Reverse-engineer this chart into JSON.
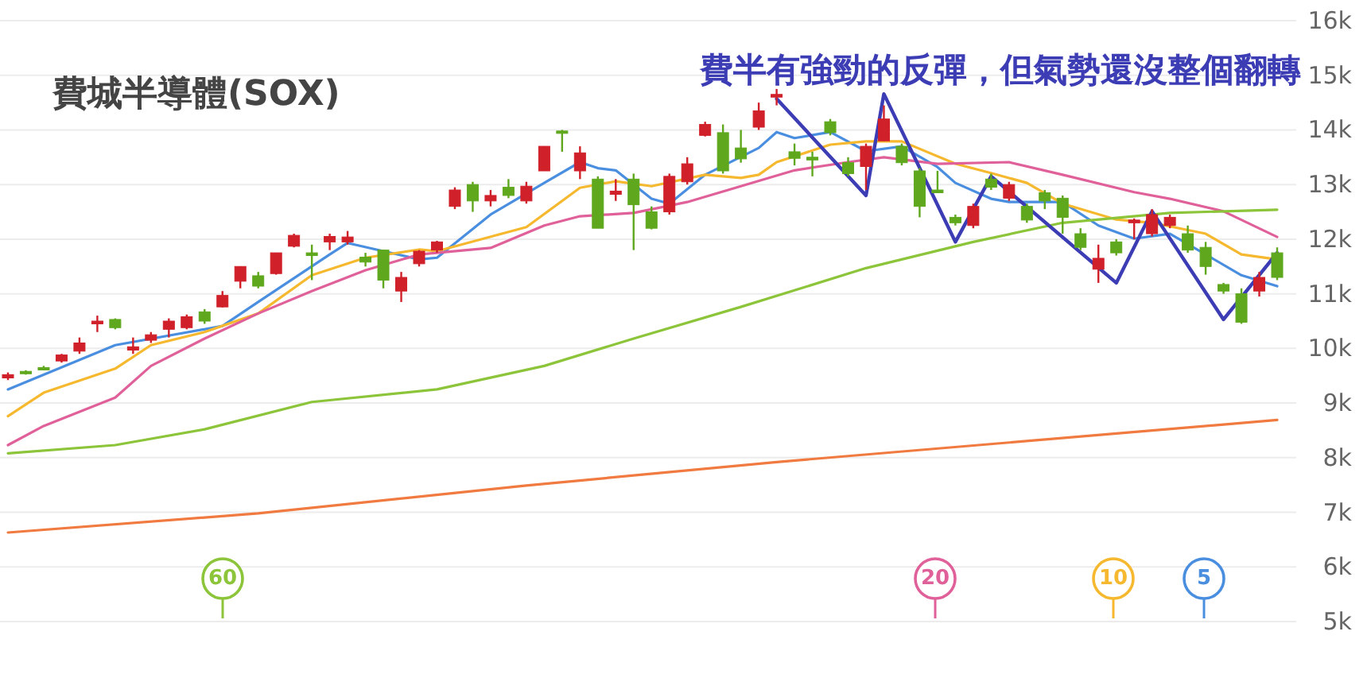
{
  "chart_data": {
    "type": "candlestick",
    "title": "費城半導體(SOX)",
    "annotations": [
      "費半有強勁的反彈，但氣勢還沒整個翻轉"
    ],
    "categories": [
      null,
      null,
      null,
      null,
      null,
      null,
      null,
      null,
      null,
      null,
      null,
      null,
      null,
      null,
      null,
      null,
      null,
      null,
      null,
      null,
      null,
      null,
      null,
      null,
      null,
      null,
      null,
      null,
      null,
      null,
      null,
      null,
      null,
      null,
      null,
      null,
      null,
      null,
      null,
      null,
      null,
      null,
      null,
      null,
      null,
      null,
      null,
      null,
      null,
      null,
      null,
      null,
      null,
      null,
      null,
      null,
      null,
      null,
      null,
      null,
      null,
      null,
      null,
      null,
      null,
      null,
      null,
      null,
      null,
      null,
      null,
      null
    ],
    "ohlc": [
      [
        9.46,
        9.56,
        9.42,
        9.52
      ],
      [
        9.58,
        9.6,
        9.52,
        9.56
      ],
      [
        9.65,
        9.68,
        9.6,
        9.62
      ],
      [
        9.77,
        9.9,
        9.74,
        9.88
      ],
      [
        9.95,
        10.2,
        9.9,
        10.1
      ],
      [
        10.45,
        10.6,
        10.3,
        10.5
      ],
      [
        10.53,
        10.55,
        10.35,
        10.38
      ],
      [
        9.97,
        10.2,
        9.9,
        10.03
      ],
      [
        10.15,
        10.3,
        10.1,
        10.25
      ],
      [
        10.35,
        10.55,
        10.2,
        10.5
      ],
      [
        10.38,
        10.62,
        10.35,
        10.58
      ],
      [
        10.67,
        10.72,
        10.45,
        10.5
      ],
      [
        10.76,
        11.05,
        10.75,
        10.97
      ],
      [
        11.23,
        11.5,
        11.1,
        11.5
      ],
      [
        11.33,
        11.4,
        11.1,
        11.14
      ],
      [
        11.37,
        11.75,
        11.35,
        11.75
      ],
      [
        11.87,
        12.1,
        11.85,
        12.07
      ],
      [
        11.75,
        11.9,
        11.25,
        11.7
      ],
      [
        11.95,
        12.1,
        11.8,
        12.05
      ],
      [
        11.95,
        12.15,
        11.9,
        12.04
      ],
      [
        11.67,
        11.75,
        11.5,
        11.58
      ],
      [
        11.8,
        11.8,
        11.1,
        11.25
      ],
      [
        11.05,
        11.4,
        10.85,
        11.3
      ],
      [
        11.55,
        11.8,
        11.5,
        11.78
      ],
      [
        11.8,
        11.97,
        11.75,
        11.95
      ],
      [
        12.6,
        12.95,
        12.55,
        12.9
      ],
      [
        13.0,
        13.05,
        12.5,
        12.7
      ],
      [
        12.7,
        12.9,
        12.6,
        12.8
      ],
      [
        12.95,
        13.1,
        12.75,
        12.8
      ],
      [
        12.7,
        13.05,
        12.65,
        12.97
      ],
      [
        13.25,
        13.7,
        13.25,
        13.7
      ],
      [
        13.98,
        14.0,
        13.6,
        13.95
      ],
      [
        13.25,
        13.7,
        13.1,
        13.58
      ],
      [
        13.1,
        13.15,
        12.2,
        12.2
      ],
      [
        12.82,
        13.1,
        12.7,
        12.88
      ],
      [
        13.1,
        13.2,
        11.8,
        12.63
      ],
      [
        12.5,
        12.6,
        12.18,
        12.2
      ],
      [
        12.5,
        13.2,
        12.45,
        13.15
      ],
      [
        13.05,
        13.5,
        13.0,
        13.38
      ],
      [
        13.9,
        14.15,
        13.88,
        14.1
      ],
      [
        13.95,
        14.1,
        13.2,
        13.25
      ],
      [
        13.67,
        14.0,
        13.4,
        13.47
      ],
      [
        14.05,
        14.5,
        14.0,
        14.35
      ],
      [
        14.6,
        14.75,
        14.45,
        14.65
      ],
      [
        13.6,
        13.75,
        13.35,
        13.48
      ],
      [
        13.5,
        13.6,
        13.15,
        13.45
      ],
      [
        14.15,
        14.2,
        13.9,
        13.95
      ],
      [
        13.4,
        13.5,
        13.15,
        13.2
      ],
      [
        13.33,
        13.75,
        12.9,
        13.7
      ],
      [
        13.8,
        14.45,
        13.8,
        14.2
      ],
      [
        13.7,
        13.75,
        13.35,
        13.4
      ],
      [
        13.25,
        13.3,
        12.4,
        12.6
      ],
      [
        12.9,
        13.25,
        12.85,
        12.85
      ],
      [
        12.4,
        12.45,
        12.25,
        12.3
      ],
      [
        12.25,
        12.65,
        12.2,
        12.6
      ],
      [
        13.1,
        13.2,
        12.9,
        12.95
      ],
      [
        12.75,
        13.05,
        12.7,
        13.0
      ],
      [
        12.6,
        12.65,
        12.3,
        12.35
      ],
      [
        12.85,
        12.9,
        12.55,
        12.7
      ],
      [
        12.75,
        12.8,
        12.1,
        12.4
      ],
      [
        12.1,
        12.2,
        11.8,
        11.85
      ],
      [
        11.45,
        11.9,
        11.2,
        11.65
      ],
      [
        11.95,
        12.0,
        11.7,
        11.75
      ],
      [
        12.3,
        12.38,
        12.0,
        12.35
      ],
      [
        12.1,
        12.55,
        12.05,
        12.45
      ],
      [
        12.25,
        12.45,
        12.2,
        12.4
      ],
      [
        12.1,
        12.25,
        11.75,
        11.8
      ],
      [
        11.85,
        11.95,
        11.35,
        11.5
      ],
      [
        11.17,
        11.2,
        11.0,
        11.05
      ],
      [
        11.0,
        11.1,
        10.45,
        10.48
      ],
      [
        11.05,
        11.4,
        10.95,
        11.3
      ],
      [
        11.75,
        11.85,
        11.25,
        11.3
      ]
    ],
    "series": [
      {
        "type": "line",
        "name": "5",
        "color": "#4a8ee0",
        "values": [
          9.25,
          null,
          null,
          null,
          null,
          null,
          10.06,
          null,
          null,
          null,
          null,
          null,
          10.41,
          null,
          10.85,
          null,
          null,
          null,
          11.72,
          11.93,
          null,
          11.78,
          null,
          11.63,
          11.66,
          null,
          null,
          12.45,
          null,
          null,
          13.03,
          null,
          13.41,
          13.3,
          13.26,
          null,
          12.74,
          12.65,
          null,
          13.18,
          null,
          null,
          13.67,
          13.96,
          13.85,
          null,
          13.96,
          null,
          13.61,
          null,
          13.7,
          null,
          13.32,
          13.03,
          null,
          12.74,
          12.68,
          null,
          null,
          12.68,
          null,
          12.25,
          null,
          12.01,
          null,
          12.1,
          null,
          11.72,
          null,
          11.34,
          null,
          11.14
        ]
      },
      {
        "type": "line",
        "name": "10",
        "color": "#f5b82e",
        "values": [
          8.76,
          null,
          9.19,
          null,
          null,
          null,
          9.63,
          null,
          10.06,
          null,
          null,
          10.3,
          null,
          null,
          10.64,
          null,
          null,
          11.34,
          null,
          null,
          11.66,
          null,
          null,
          11.81,
          11.78,
          null,
          null,
          null,
          null,
          12.22,
          null,
          null,
          12.94,
          null,
          13.06,
          null,
          12.97,
          null,
          null,
          13.18,
          null,
          13.12,
          13.18,
          13.41,
          null,
          null,
          13.73,
          null,
          13.79,
          null,
          13.79,
          null,
          null,
          13.38,
          null,
          13.21,
          null,
          13.03,
          null,
          12.65,
          null,
          null,
          12.36,
          null,
          12.3,
          null,
          null,
          12.1,
          null,
          11.72,
          null,
          11.63
        ]
      },
      {
        "type": "line",
        "name": "20",
        "color": "#e0609a",
        "values": [
          8.23,
          null,
          8.58,
          null,
          null,
          null,
          9.1,
          null,
          9.68,
          null,
          null,
          10.18,
          null,
          null,
          10.64,
          null,
          null,
          11.05,
          null,
          null,
          11.43,
          null,
          null,
          11.72,
          null,
          null,
          null,
          11.84,
          null,
          null,
          12.25,
          null,
          12.42,
          null,
          null,
          12.48,
          null,
          null,
          12.68,
          null,
          null,
          12.97,
          null,
          null,
          13.26,
          null,
          null,
          13.41,
          null,
          13.5,
          null,
          null,
          13.38,
          null,
          null,
          null,
          13.41,
          null,
          null,
          13.18,
          null,
          null,
          null,
          12.86,
          null,
          12.74,
          null,
          null,
          12.51,
          null,
          null,
          12.04
        ]
      },
      {
        "type": "line",
        "name": "60",
        "color": "#8cc43a",
        "values": [
          8.08,
          null,
          null,
          null,
          null,
          null,
          8.23,
          null,
          null,
          null,
          null,
          8.52,
          null,
          null,
          null,
          null,
          null,
          9.02,
          null,
          null,
          null,
          null,
          null,
          null,
          9.25,
          null,
          null,
          null,
          null,
          null,
          9.68,
          null,
          null,
          null,
          null,
          10.18,
          null,
          null,
          null,
          null,
          null,
          10.76,
          null,
          null,
          null,
          null,
          null,
          null,
          11.47,
          null,
          null,
          null,
          null,
          null,
          11.95,
          null,
          null,
          null,
          null,
          12.3,
          null,
          null,
          null,
          null,
          null,
          12.48,
          null,
          null,
          null,
          null,
          null,
          12.54
        ]
      },
      {
        "type": "line",
        "color": "#f07a40",
        "values": [
          6.63,
          null,
          null,
          null,
          null,
          null,
          null,
          null,
          null,
          null,
          null,
          null,
          null,
          null,
          6.98,
          null,
          null,
          null,
          null,
          null,
          null,
          null,
          null,
          null,
          null,
          null,
          null,
          null,
          null,
          7.49,
          null,
          null,
          null,
          null,
          null,
          null,
          null,
          null,
          null,
          null,
          null,
          null,
          null,
          7.92,
          null,
          null,
          null,
          null,
          null,
          null,
          null,
          null,
          null,
          null,
          null,
          null,
          null,
          null,
          null,
          null,
          null,
          null,
          null,
          null,
          null,
          null,
          null,
          null,
          null,
          null,
          null,
          8.69
        ]
      },
      {
        "type": "line",
        "color": "#3c3cb4",
        "values": [
          null,
          null,
          null,
          null,
          null,
          null,
          null,
          null,
          null,
          null,
          null,
          null,
          null,
          null,
          null,
          null,
          null,
          null,
          null,
          null,
          null,
          null,
          null,
          null,
          null,
          null,
          null,
          null,
          null,
          null,
          null,
          null,
          null,
          null,
          null,
          null,
          null,
          null,
          null,
          null,
          null,
          null,
          null,
          14.57,
          null,
          null,
          null,
          null,
          12.8,
          14.66,
          null,
          null,
          null,
          11.95,
          null,
          13.15,
          null,
          null,
          null,
          null,
          null,
          null,
          11.2,
          null,
          12.51,
          null,
          null,
          null,
          10.53,
          null,
          null,
          11.75
        ]
      }
    ],
    "ylim": [
      5,
      16
    ],
    "yticks": [
      {
        "value": 5,
        "label": "5k"
      },
      {
        "value": 6,
        "label": "6k"
      },
      {
        "value": 7,
        "label": "7k"
      },
      {
        "value": 8,
        "label": "8k"
      },
      {
        "value": 9,
        "label": "9k"
      },
      {
        "value": 10,
        "label": "10k"
      },
      {
        "value": 11,
        "label": "11k"
      },
      {
        "value": 12,
        "label": "12k"
      },
      {
        "value": 13,
        "label": "13k"
      },
      {
        "value": 14,
        "label": "14k"
      },
      {
        "value": 15,
        "label": "15k"
      },
      {
        "value": 16,
        "label": "16k"
      }
    ],
    "grid": "y",
    "legend": "bottom",
    "tick_labels": "y"
  }
}
